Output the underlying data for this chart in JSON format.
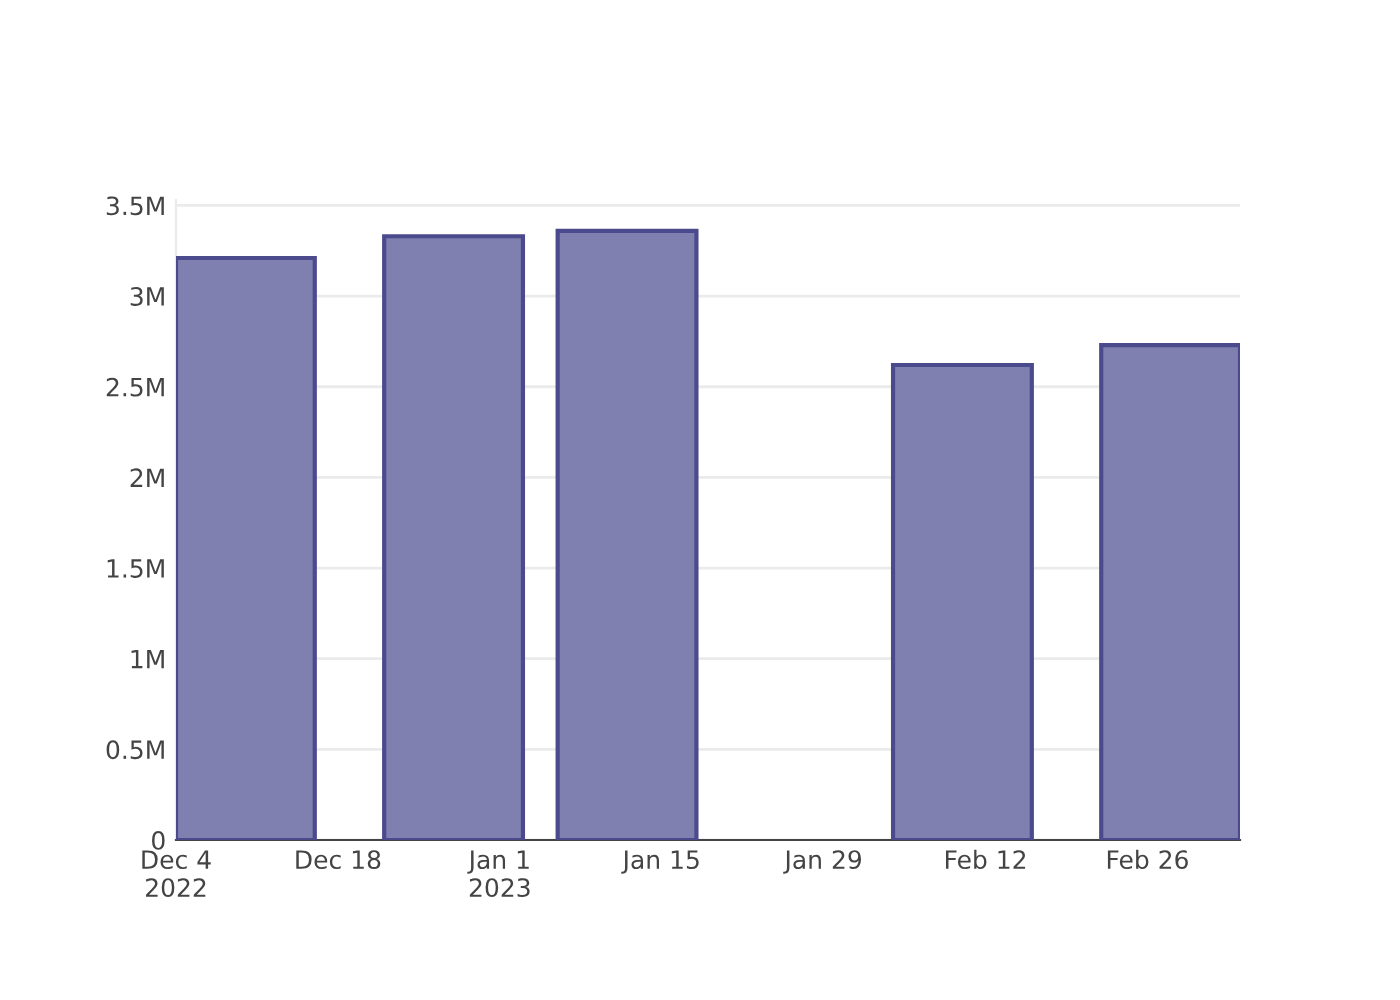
{
  "chart_data": {
    "type": "bar",
    "x": [
      "2022-12-10",
      "2022-12-28",
      "2023-01-12",
      "2023-02-10",
      "2023-02-28"
    ],
    "series": [
      {
        "color": "#7f7fb0",
        "values": [
          3210000,
          3330000,
          3360000,
          2620000,
          2730000
        ]
      }
    ],
    "xlim": [
      "2022-12-04",
      "2023-03-06"
    ],
    "xticks": [
      {
        "value": "2022-12-04",
        "label": "Dec 4\n2022"
      },
      {
        "value": "2022-12-18",
        "label": "Dec 18"
      },
      {
        "value": "2023-01-01",
        "label": "Jan 1\n2023"
      },
      {
        "value": "2023-01-15",
        "label": "Jan 15"
      },
      {
        "value": "2023-01-29",
        "label": "Jan 29"
      },
      {
        "value": "2023-02-12",
        "label": "Feb 12"
      },
      {
        "value": "2023-02-26",
        "label": "Feb 26"
      }
    ],
    "ylim": [
      0,
      3530000
    ],
    "yticks": [
      {
        "value": 0,
        "label": "0"
      },
      {
        "value": 500000,
        "label": "0.5M"
      },
      {
        "value": 1000000,
        "label": "1M"
      },
      {
        "value": 1500000,
        "label": "1.5M"
      },
      {
        "value": 2000000,
        "label": "2M"
      },
      {
        "value": 2500000,
        "label": "2.5M"
      },
      {
        "value": 3000000,
        "label": "3M"
      },
      {
        "value": 3500000,
        "label": "3.5M"
      }
    ],
    "grid": "y",
    "legend": false
  }
}
